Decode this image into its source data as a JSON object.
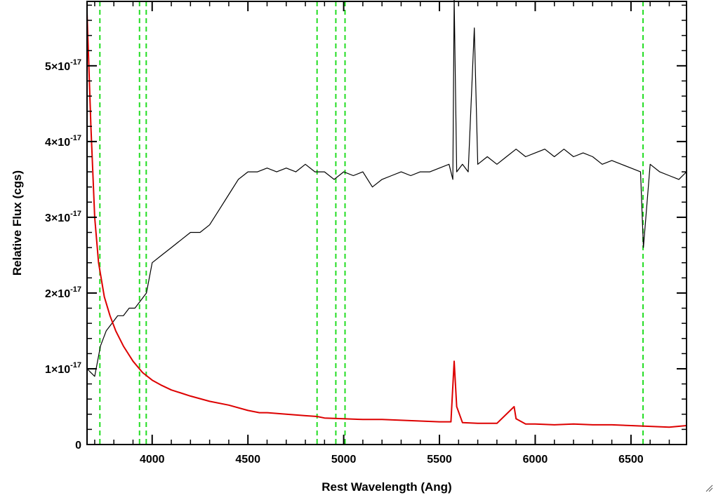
{
  "chart_data": {
    "type": "line",
    "title": "",
    "xlabel": "Rest Wavelength (Ang)",
    "ylabel": "Relative Flux (cgs)",
    "xlim": [
      3660,
      6790
    ],
    "ylim": [
      0,
      5.85e-17
    ],
    "x_ticks": [
      {
        "value": 4000,
        "label": "4000"
      },
      {
        "value": 4500,
        "label": "4500"
      },
      {
        "value": 5000,
        "label": "5000"
      },
      {
        "value": 5500,
        "label": "5500"
      },
      {
        "value": 6000,
        "label": "6000"
      },
      {
        "value": 6500,
        "label": "6500"
      }
    ],
    "y_ticks": [
      {
        "value": 0,
        "mantissa": "0",
        "exponent": ""
      },
      {
        "value": 1e-17,
        "mantissa": "1×10",
        "exponent": "-17"
      },
      {
        "value": 2e-17,
        "mantissa": "2×10",
        "exponent": "-17"
      },
      {
        "value": 3e-17,
        "mantissa": "3×10",
        "exponent": "-17"
      },
      {
        "value": 4e-17,
        "mantissa": "4×10",
        "exponent": "-17"
      },
      {
        "value": 5e-17,
        "mantissa": "5×10",
        "exponent": "-17"
      }
    ],
    "grid": false,
    "reference_lines": {
      "color": "#22dd22",
      "style": "dashed",
      "x": [
        3727,
        3934,
        3969,
        4861,
        4959,
        5007,
        6563
      ]
    },
    "series": [
      {
        "color": "#000000",
        "x": [
          3660,
          3700,
          3730,
          3760,
          3790,
          3820,
          3850,
          3880,
          3910,
          3940,
          3970,
          4000,
          4050,
          4100,
          4150,
          4200,
          4250,
          4300,
          4350,
          4400,
          4450,
          4500,
          4550,
          4600,
          4650,
          4700,
          4750,
          4800,
          4850,
          4900,
          4950,
          5000,
          5050,
          5100,
          5150,
          5200,
          5250,
          5300,
          5350,
          5400,
          5450,
          5500,
          5550,
          5570,
          5577,
          5590,
          5620,
          5650,
          5682,
          5700,
          5750,
          5800,
          5850,
          5900,
          5950,
          6000,
          6050,
          6100,
          6150,
          6200,
          6250,
          6300,
          6350,
          6400,
          6450,
          6500,
          6550,
          6565,
          6600,
          6650,
          6700,
          6750,
          6790
        ],
        "y": [
          1e-17,
          9e-18,
          1.3e-17,
          1.5e-17,
          1.6e-17,
          1.7e-17,
          1.7e-17,
          1.8e-17,
          1.8e-17,
          1.9e-17,
          2e-17,
          2.4e-17,
          2.5e-17,
          2.6e-17,
          2.7e-17,
          2.8e-17,
          2.8e-17,
          2.9e-17,
          3.1e-17,
          3.3e-17,
          3.5e-17,
          3.6e-17,
          3.6e-17,
          3.65e-17,
          3.6e-17,
          3.65e-17,
          3.6e-17,
          3.7e-17,
          3.6e-17,
          3.6e-17,
          3.5e-17,
          3.6e-17,
          3.55e-17,
          3.6e-17,
          3.4e-17,
          3.5e-17,
          3.55e-17,
          3.6e-17,
          3.55e-17,
          3.6e-17,
          3.6e-17,
          3.65e-17,
          3.7e-17,
          3.5e-17,
          5.9e-17,
          3.6e-17,
          3.7e-17,
          3.6e-17,
          5.5e-17,
          3.7e-17,
          3.8e-17,
          3.7e-17,
          3.8e-17,
          3.9e-17,
          3.8e-17,
          3.85e-17,
          3.9e-17,
          3.8e-17,
          3.9e-17,
          3.8e-17,
          3.85e-17,
          3.8e-17,
          3.7e-17,
          3.75e-17,
          3.7e-17,
          3.65e-17,
          3.6e-17,
          2.6e-17,
          3.7e-17,
          3.6e-17,
          3.55e-17,
          3.5e-17,
          3.6e-17
        ]
      },
      {
        "color": "#dd0000",
        "x": [
          3660,
          3680,
          3700,
          3720,
          3750,
          3780,
          3810,
          3850,
          3900,
          3950,
          4000,
          4050,
          4100,
          4150,
          4200,
          4300,
          4400,
          4500,
          4560,
          4600,
          4700,
          4800,
          4861,
          4900,
          5000,
          5100,
          5200,
          5300,
          5400,
          5500,
          5560,
          5577,
          5590,
          5620,
          5700,
          5800,
          5890,
          5900,
          5950,
          6000,
          6100,
          6200,
          6300,
          6400,
          6500,
          6600,
          6700,
          6790
        ],
        "y": [
          5.7e-17,
          4.2e-17,
          3e-17,
          2.4e-17,
          1.95e-17,
          1.7e-17,
          1.5e-17,
          1.3e-17,
          1.1e-17,
          9.5e-18,
          8.5e-18,
          7.8e-18,
          7.2e-18,
          6.8e-18,
          6.4e-18,
          5.7e-18,
          5.2e-18,
          4.5e-18,
          4.2e-18,
          4.2e-18,
          4e-18,
          3.8e-18,
          3.7e-18,
          3.5e-18,
          3.4e-18,
          3.3e-18,
          3.3e-18,
          3.2e-18,
          3.1e-18,
          3e-18,
          3e-18,
          1.1e-17,
          5e-18,
          2.9e-18,
          2.8e-18,
          2.8e-18,
          5e-18,
          3.4e-18,
          2.7e-18,
          2.7e-18,
          2.6e-18,
          2.7e-18,
          2.6e-18,
          2.6e-18,
          2.5e-18,
          2.4e-18,
          2.3e-18,
          2.5e-18
        ]
      }
    ]
  }
}
